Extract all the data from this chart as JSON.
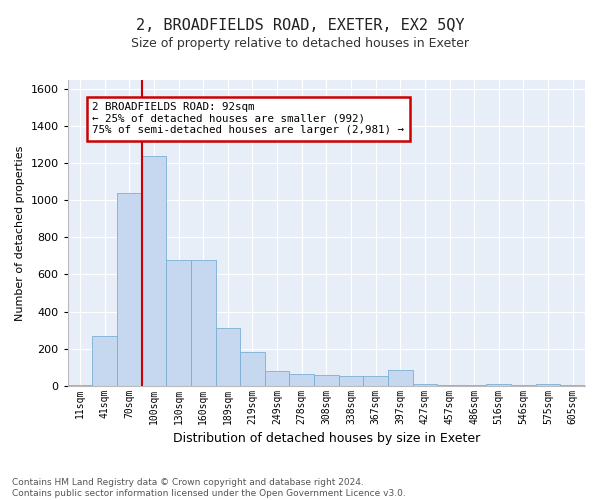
{
  "title": "2, BROADFIELDS ROAD, EXETER, EX2 5QY",
  "subtitle": "Size of property relative to detached houses in Exeter",
  "xlabel": "Distribution of detached houses by size in Exeter",
  "ylabel": "Number of detached properties",
  "bar_color": "#c5d8f0",
  "bar_edge_color": "#7aafd4",
  "background_color": "#e8eef8",
  "grid_color": "#ffffff",
  "categories": [
    "11sqm",
    "41sqm",
    "70sqm",
    "100sqm",
    "130sqm",
    "160sqm",
    "189sqm",
    "219sqm",
    "249sqm",
    "278sqm",
    "308sqm",
    "338sqm",
    "367sqm",
    "397sqm",
    "427sqm",
    "457sqm",
    "486sqm",
    "516sqm",
    "546sqm",
    "575sqm",
    "605sqm"
  ],
  "values": [
    5,
    270,
    1040,
    1240,
    680,
    680,
    310,
    180,
    80,
    65,
    55,
    50,
    50,
    85,
    10,
    2,
    2,
    8,
    2,
    8,
    2
  ],
  "ylim": [
    0,
    1650
  ],
  "yticks": [
    0,
    200,
    400,
    600,
    800,
    1000,
    1200,
    1400,
    1600
  ],
  "property_line_x": 2.5,
  "annotation_text_line1": "2 BROADFIELDS ROAD: 92sqm",
  "annotation_text_line2": "← 25% of detached houses are smaller (992)",
  "annotation_text_line3": "75% of semi-detached houses are larger (2,981) →",
  "footer_text": "Contains HM Land Registry data © Crown copyright and database right 2024.\nContains public sector information licensed under the Open Government Licence v3.0.",
  "red_line_color": "#cc0000",
  "annotation_box_color": "#ffffff",
  "annotation_box_edge_color": "#cc0000"
}
